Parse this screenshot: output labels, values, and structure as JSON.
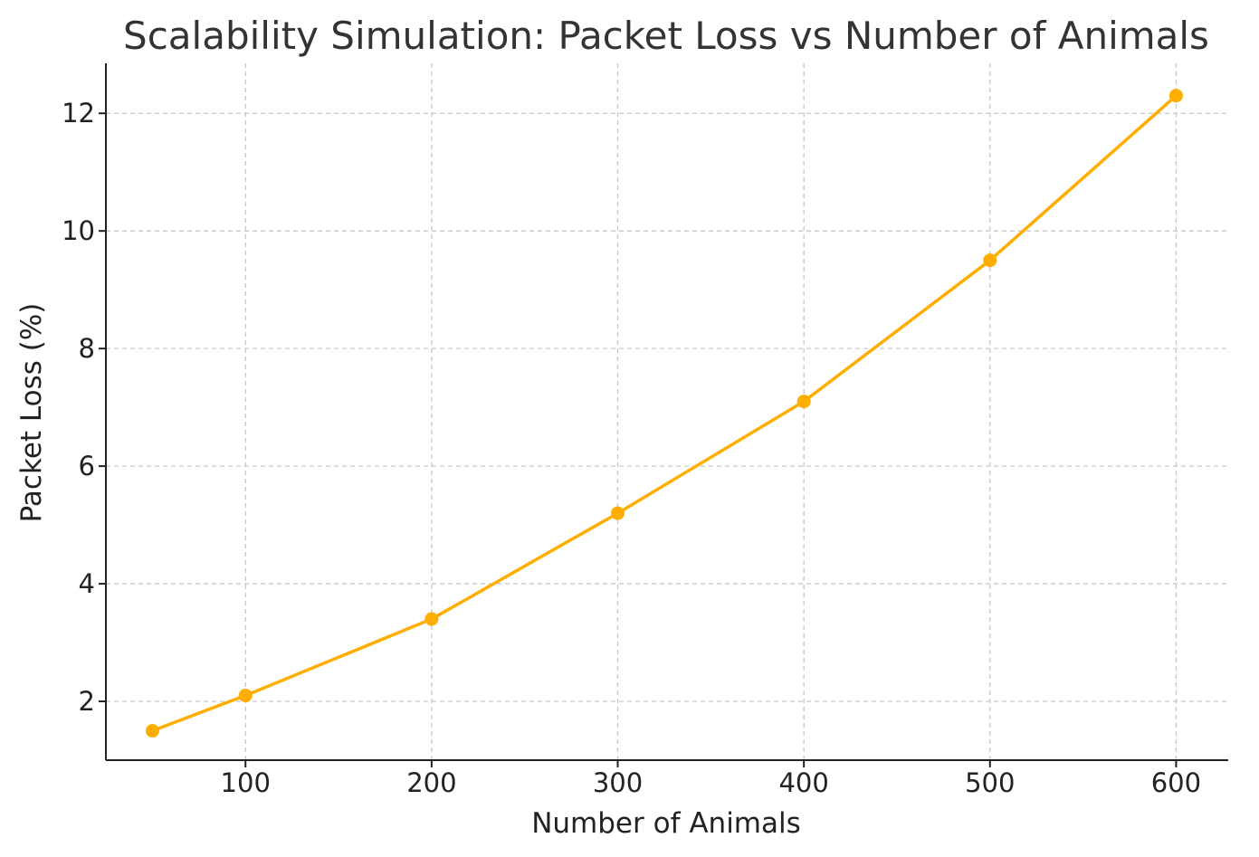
{
  "chart_data": {
    "type": "line",
    "title": "Scalability Simulation: Packet Loss vs Number of Animals",
    "xlabel": "Number of Animals",
    "ylabel": "Packet Loss (%)",
    "x": [
      50,
      100,
      200,
      300,
      400,
      500,
      600
    ],
    "series": [
      {
        "name": "Packet Loss",
        "values": [
          1.5,
          2.1,
          3.4,
          5.2,
          7.1,
          9.5,
          12.3
        ],
        "color": "#FFAE00"
      }
    ],
    "xlim": [
      25,
      628
    ],
    "ylim": [
      1.0,
      12.85
    ],
    "xticks": [
      100,
      200,
      300,
      400,
      500,
      600
    ],
    "yticks": [
      2,
      4,
      6,
      8,
      10,
      12
    ],
    "grid": true,
    "legend": "none"
  }
}
